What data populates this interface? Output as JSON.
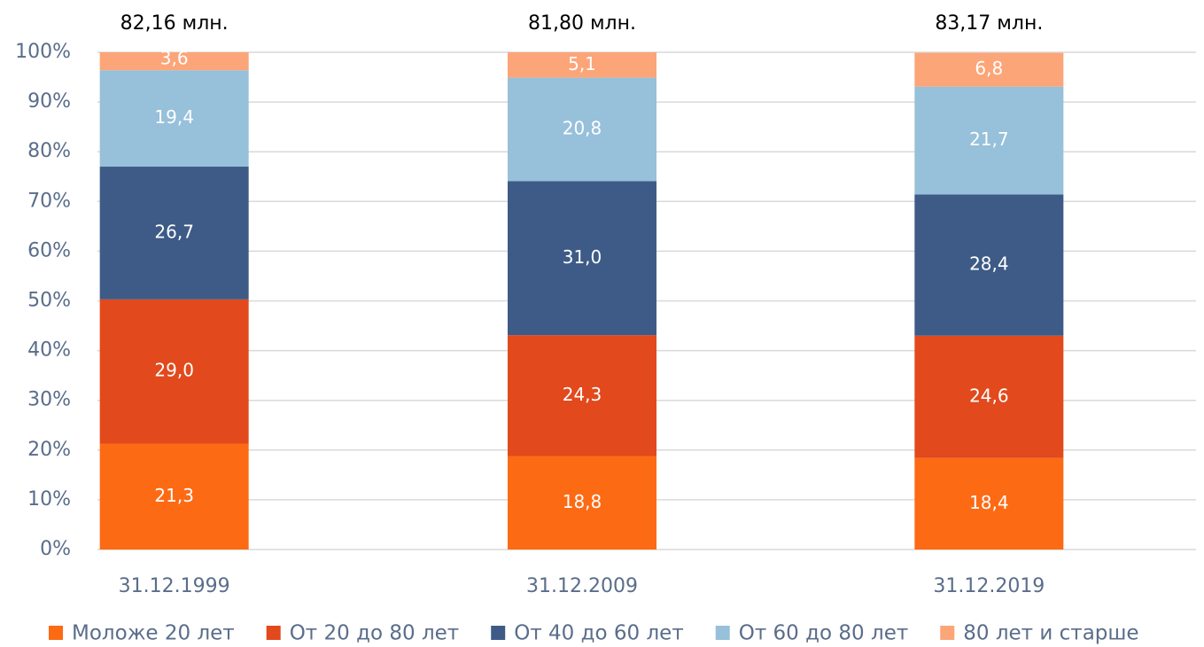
{
  "chart_data": {
    "type": "stacked_bar",
    "categories": [
      "31.12.1999",
      "31.12.2009",
      "31.12.2019"
    ],
    "totals": {
      "values": [
        82.16,
        81.8,
        83.17
      ],
      "value_labels": [
        "82,16 млн.",
        "81,80 млн.",
        "83,17 млн."
      ]
    },
    "series": [
      {
        "name": "Моложе 20 лет",
        "color": "#fd6a14",
        "values": [
          21.3,
          18.8,
          18.4
        ],
        "value_labels": [
          "21,3",
          "18,8",
          "18,4"
        ]
      },
      {
        "name": "От 20 до 80 лет",
        "color": "#e2491c",
        "values": [
          29.0,
          24.3,
          24.6
        ],
        "value_labels": [
          "29,0",
          "24,3",
          "24,6"
        ]
      },
      {
        "name": "От 40 до 60 лет",
        "color": "#3d5b86",
        "values": [
          26.7,
          31.0,
          28.4
        ],
        "value_labels": [
          "26,7",
          "31,0",
          "28,4"
        ]
      },
      {
        "name": "От 60 до 80 лет",
        "color": "#97c0da",
        "values": [
          19.4,
          20.8,
          21.7
        ],
        "value_labels": [
          "19,4",
          "20,8",
          "21,7"
        ]
      },
      {
        "name": "80 лет и старше",
        "color": "#fca578",
        "values": [
          3.6,
          5.1,
          6.8
        ],
        "value_labels": [
          "3,6",
          "5,1",
          "6,8"
        ]
      }
    ],
    "ylim": [
      0,
      100
    ],
    "yticks": [
      {
        "value": 0,
        "label": "0%"
      },
      {
        "value": 10,
        "label": "10%"
      },
      {
        "value": 20,
        "label": "20%"
      },
      {
        "value": 30,
        "label": "30%"
      },
      {
        "value": 40,
        "label": "40%"
      },
      {
        "value": 50,
        "label": "50%"
      },
      {
        "value": 60,
        "label": "60%"
      },
      {
        "value": 70,
        "label": "70%"
      },
      {
        "value": 80,
        "label": "80%"
      },
      {
        "value": 90,
        "label": "90%"
      },
      {
        "value": 100,
        "label": "100%"
      }
    ],
    "grid": true,
    "legend": "bottom"
  }
}
